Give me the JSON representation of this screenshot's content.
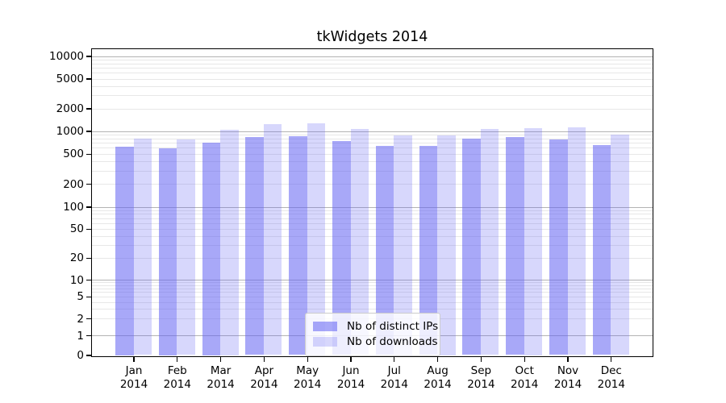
{
  "title": "tkWidgets 2014",
  "colors": {
    "bar_base": "#6161f2",
    "bar_ips_alpha": 0.55,
    "bar_downloads_alpha": 0.25,
    "grid_major": "#b3b3b3",
    "grid_minor": "#e7e7e7",
    "frame": "#000000",
    "background": "#ffffff",
    "text": "#000000"
  },
  "chart_data": {
    "type": "bar",
    "title": "tkWidgets 2014",
    "categories": [
      "Jan",
      "Feb",
      "Mar",
      "Apr",
      "May",
      "Jun",
      "Jul",
      "Aug",
      "Sep",
      "Oct",
      "Nov",
      "Dec"
    ],
    "x_tick_second_line": "2014",
    "series": [
      {
        "name": "Nb of distinct IPs",
        "values": [
          620,
          590,
          710,
          835,
          855,
          735,
          640,
          630,
          790,
          825,
          765,
          645
        ]
      },
      {
        "name": "Nb of downloads",
        "values": [
          800,
          775,
          1050,
          1230,
          1280,
          1070,
          885,
          875,
          1055,
          1090,
          1120,
          905
        ]
      }
    ],
    "xlabel": "",
    "ylabel": "",
    "yscale": "log-with-zero-baseline",
    "yticks": [
      10000,
      5000,
      2000,
      1000,
      500,
      200,
      100,
      50,
      20,
      10,
      5,
      2,
      1,
      0
    ],
    "ylim": [
      0,
      14000
    ],
    "grid": "horizontal major and minor gridlines",
    "legend_position": "lower center"
  },
  "legend": {
    "items": [
      {
        "label": "Nb of distinct IPs"
      },
      {
        "label": "Nb of downloads"
      }
    ]
  }
}
